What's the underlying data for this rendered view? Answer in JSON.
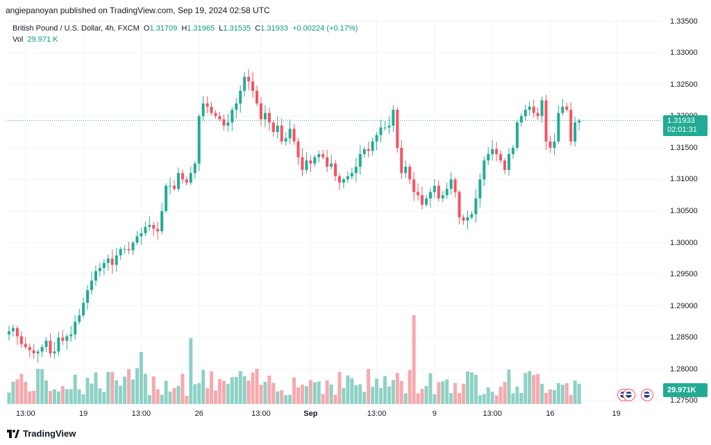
{
  "header": {
    "publisher": "angiepanoyan published on TradingView.com, Sep 19, 2024 02:58 UTC"
  },
  "legend": {
    "symbol": "British Pound / U.S. Dollar, 4h, FXCM",
    "o_label": "O",
    "o": "1.31709",
    "h_label": "H",
    "h": "1.31965",
    "l_label": "L",
    "l": "1.31535",
    "c_label": "C",
    "c": "1.31933",
    "change": "+0.00224 (+0.17%)",
    "vol_label": "Vol",
    "vol": "29.971 K"
  },
  "badges": {
    "last_price": "1.31933",
    "countdown": "02:01:31",
    "volume": "29.971K"
  },
  "footer": {
    "brand": "TradingView"
  },
  "colors": {
    "up": "#22ab94",
    "down": "#f7525f",
    "up_vol": "#8ed1c5",
    "down_vol": "#f7a9ae",
    "grid": "#f0f3fa"
  },
  "chart_data": {
    "type": "candlestick",
    "title": "British Pound / U.S. Dollar, 4h, FXCM",
    "y_ticks": [
      "1.33500",
      "1.33000",
      "1.32500",
      "1.32000",
      "1.31500",
      "1.31000",
      "1.30500",
      "1.30000",
      "1.29500",
      "1.29000",
      "1.28500",
      "1.28000",
      "1.27500"
    ],
    "ylim": [
      1.2745,
      1.3355
    ],
    "x_ticks": [
      {
        "label": "13:00",
        "bold": false,
        "index": 4
      },
      {
        "label": "19",
        "bold": false,
        "index": 18
      },
      {
        "label": "13:00",
        "bold": false,
        "index": 32
      },
      {
        "label": "26",
        "bold": false,
        "index": 46
      },
      {
        "label": "13:00",
        "bold": false,
        "index": 61
      },
      {
        "label": "Sep",
        "bold": true,
        "index": 73
      },
      {
        "label": "13:00",
        "bold": false,
        "index": 89
      },
      {
        "label": "9",
        "bold": false,
        "index": 103
      },
      {
        "label": "13:00",
        "bold": false,
        "index": 117
      },
      {
        "label": "16",
        "bold": false,
        "index": 131
      },
      {
        "label": "19",
        "bold": false,
        "index": 147
      }
    ],
    "close": [
      1.286,
      1.2865,
      1.2852,
      1.284,
      1.2835,
      1.283,
      1.2825,
      1.2828,
      1.2835,
      1.2845,
      1.2825,
      1.2828,
      1.285,
      1.2845,
      1.2852,
      1.2855,
      1.2875,
      1.2885,
      1.2905,
      1.2925,
      1.294,
      1.2955,
      1.296,
      1.2968,
      1.2975,
      1.2965,
      1.298,
      1.299,
      1.299,
      1.2988,
      1.3,
      1.301,
      1.3015,
      1.3025,
      1.3028,
      1.3022,
      1.3018,
      1.305,
      1.309,
      1.309,
      1.3085,
      1.311,
      1.31,
      1.3095,
      1.311,
      1.3125,
      1.32,
      1.322,
      1.3215,
      1.3205,
      1.32,
      1.3195,
      1.3185,
      1.319,
      1.321,
      1.322,
      1.324,
      1.3262,
      1.3255,
      1.324,
      1.322,
      1.3195,
      1.3205,
      1.319,
      1.3175,
      1.3185,
      1.316,
      1.3165,
      1.318,
      1.316,
      1.3135,
      1.3115,
      1.313,
      1.3125,
      1.3135,
      1.314,
      1.3135,
      1.312,
      1.3125,
      1.3105,
      1.3095,
      1.31,
      1.3105,
      1.311,
      1.312,
      1.314,
      1.3148,
      1.3145,
      1.316,
      1.317,
      1.3182,
      1.3182,
      1.3185,
      1.321,
      1.315,
      1.311,
      1.312,
      1.31,
      1.308,
      1.3075,
      1.306,
      1.307,
      1.308,
      1.309,
      1.307,
      1.3075,
      1.3085,
      1.31,
      1.308,
      1.304,
      1.3035,
      1.304,
      1.3045,
      1.307,
      1.31,
      1.313,
      1.314,
      1.3148,
      1.314,
      1.313,
      1.3115,
      1.314,
      1.315,
      1.319,
      1.32,
      1.321,
      1.3215,
      1.3205,
      1.32,
      1.3225,
      1.316,
      1.315,
      1.316,
      1.3205,
      1.3215,
      1.321,
      1.316,
      1.319,
      1.3193
    ],
    "volume_max_k": 55,
    "volume_note": "Volume histogram below candles; last bar volume 29.971K"
  }
}
